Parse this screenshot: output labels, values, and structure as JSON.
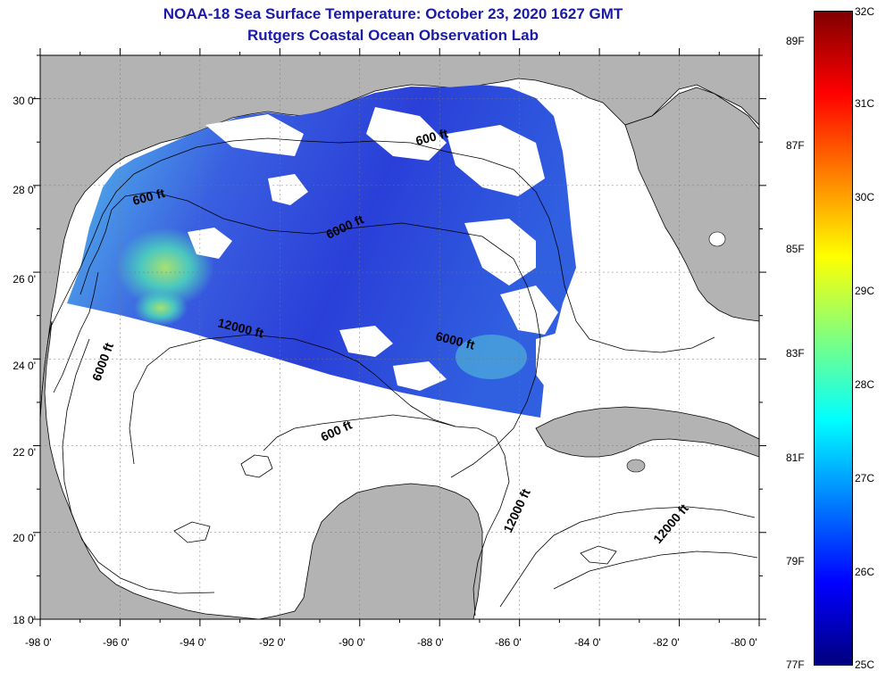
{
  "title": "NOAA-18 Sea Surface Temperature:  October 23, 2020 1627 GMT",
  "subtitle": "Rutgers Coastal Ocean Observation Lab",
  "axes": {
    "lon_labels": [
      "-98 0'",
      "-96 0'",
      "-94 0'",
      "-92 0'",
      "-90 0'",
      "-88 0'",
      "-86 0'",
      "-84 0'",
      "-82 0'",
      "-80 0'"
    ],
    "lat_labels": [
      "30 0'",
      "28 0'",
      "26 0'",
      "24 0'",
      "22 0'",
      "20 0'",
      "18 0'"
    ],
    "lon_range": [
      -98,
      -80
    ],
    "lat_range": [
      18,
      31
    ]
  },
  "contour_labels": [
    {
      "text": "600 ft"
    },
    {
      "text": "600 ft"
    },
    {
      "text": "6000 ft"
    },
    {
      "text": "12000 ft"
    },
    {
      "text": "6000 ft"
    },
    {
      "text": "6000 ft"
    },
    {
      "text": "600 ft"
    },
    {
      "text": "12000 ft"
    },
    {
      "text": "12000 ft"
    }
  ],
  "colorbar": {
    "celsius_labels": [
      "32C",
      "31C",
      "30C",
      "29C",
      "28C",
      "27C",
      "26C",
      "25C"
    ],
    "fahrenheit_labels": [
      "89F",
      "87F",
      "85F",
      "83F",
      "81F",
      "79F",
      "77F"
    ],
    "celsius_range": [
      25,
      32
    ],
    "colors": [
      "#00007f",
      "#0000ff",
      "#007fff",
      "#00ffff",
      "#7fff7f",
      "#ffff00",
      "#ff7f00",
      "#ff0000",
      "#7f0000"
    ]
  },
  "colors": {
    "land": "#b3b3b3",
    "title": "#1a1aa6",
    "sst_dark": "#1e2fd8",
    "sst_mid": "#3f5fe0",
    "sst_warm": "#3ac8d8"
  }
}
